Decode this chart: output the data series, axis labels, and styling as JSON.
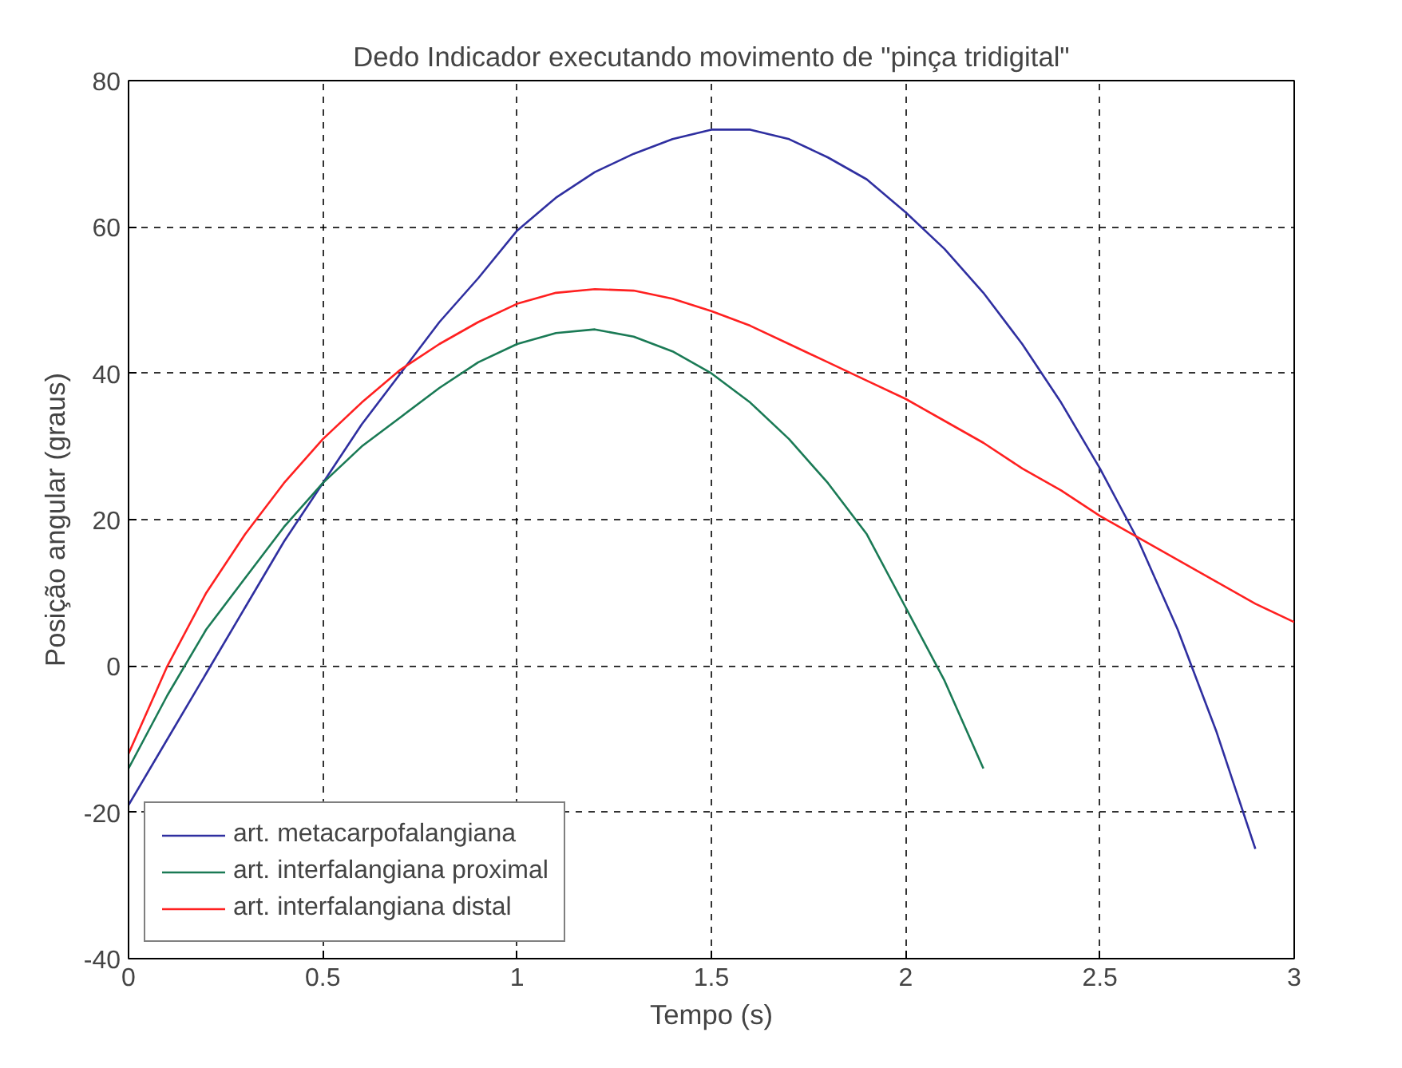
{
  "chart_data": {
    "type": "line",
    "title": "Dedo Indicador executando movimento de \"pinça tridigital\"",
    "xlabel": "Tempo (s)",
    "ylabel": "Posição angular (graus)",
    "xlim": [
      0,
      3
    ],
    "ylim": [
      -40,
      80
    ],
    "xticks": [
      0,
      0.5,
      1,
      1.5,
      2,
      2.5,
      3
    ],
    "yticks": [
      -40,
      -20,
      0,
      20,
      40,
      60,
      80
    ],
    "grid": true,
    "legend": "bottom left",
    "marker": "none",
    "line_style": "solid",
    "series": [
      {
        "name": "art. metacarpofalangiana",
        "color": "#2f2fa0",
        "x": [
          0,
          0.1,
          0.2,
          0.3,
          0.4,
          0.5,
          0.6,
          0.7,
          0.8,
          0.9,
          1.0,
          1.1,
          1.2,
          1.3,
          1.4,
          1.5,
          1.6,
          1.7,
          1.8,
          1.9,
          2.0,
          2.1,
          2.2,
          2.3,
          2.4,
          2.5,
          2.6,
          2.7,
          2.8,
          2.9
        ],
        "values": [
          -19,
          -10,
          -1,
          8,
          17,
          25,
          33,
          40,
          47,
          53,
          59.5,
          64,
          67.5,
          70,
          72,
          73.3,
          73.3,
          72,
          69.5,
          66.5,
          62,
          57,
          51,
          44,
          36,
          27,
          17,
          5,
          -9,
          -25
        ]
      },
      {
        "name": "art. interfalangiana proximal",
        "color": "#1a7a55",
        "x": [
          0,
          0.1,
          0.2,
          0.3,
          0.4,
          0.5,
          0.6,
          0.7,
          0.8,
          0.9,
          1.0,
          1.1,
          1.2,
          1.3,
          1.4,
          1.5,
          1.6,
          1.7,
          1.8,
          1.9,
          2.0,
          2.1,
          2.2
        ],
        "values": [
          -14,
          -4,
          5,
          12,
          19,
          25,
          30,
          34,
          38,
          41.5,
          44,
          45.5,
          46,
          45,
          43,
          40,
          36,
          31,
          25,
          18,
          8,
          -2,
          -14
        ]
      },
      {
        "name": "art. interfalangiana distal",
        "color": "#ff2020",
        "x": [
          0,
          0.1,
          0.2,
          0.3,
          0.4,
          0.5,
          0.6,
          0.7,
          0.8,
          0.9,
          1.0,
          1.1,
          1.2,
          1.3,
          1.4,
          1.5,
          1.6,
          1.7,
          1.8,
          1.9,
          2.0,
          2.1,
          2.2,
          2.3,
          2.4,
          2.5,
          2.6,
          2.7,
          2.8,
          2.9,
          3.0
        ],
        "values": [
          -12,
          0,
          10,
          18,
          25,
          31,
          36,
          40.5,
          44,
          47,
          49.5,
          51,
          51.5,
          51.3,
          50.2,
          48.5,
          46.5,
          44,
          41.5,
          39,
          36.5,
          33.5,
          30.5,
          27,
          24,
          20.5,
          17.5,
          14.5,
          11.5,
          8.5,
          6
        ]
      }
    ]
  }
}
